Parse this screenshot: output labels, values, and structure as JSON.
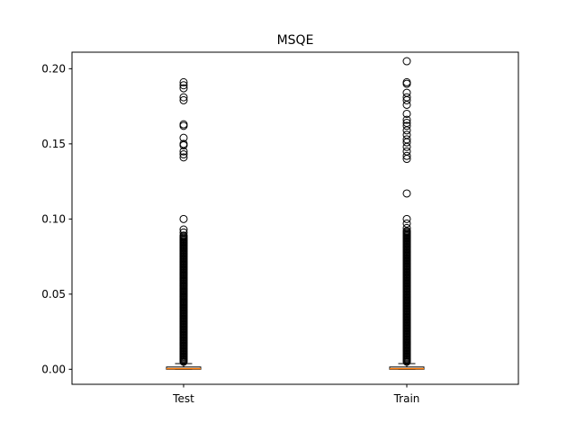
{
  "chart_data": {
    "type": "box",
    "title": "MSQE",
    "xlabel": "",
    "ylabel": "",
    "categories": [
      "Test",
      "Train"
    ],
    "ylim": [
      -0.01,
      0.211
    ],
    "yticks": [
      0.0,
      0.05,
      0.1,
      0.15,
      0.2
    ],
    "ytick_labels": [
      "0.00",
      "0.05",
      "0.10",
      "0.15",
      "0.20"
    ],
    "grid": false,
    "legend": "none",
    "boxes": [
      {
        "name": "Test",
        "whisker_low": 0.0,
        "q1": 0.0,
        "median": 0.0004,
        "q3": 0.0015,
        "whisker_high": 0.0038,
        "outliers_dense_range": [
          0.005,
          0.089
        ],
        "outliers": [
          0.091,
          0.093,
          0.1,
          0.141,
          0.143,
          0.145,
          0.149,
          0.15,
          0.154,
          0.162,
          0.163,
          0.179,
          0.181,
          0.187,
          0.189,
          0.191
        ]
      },
      {
        "name": "Train",
        "whisker_low": 0.0,
        "q1": 0.0,
        "median": 0.0004,
        "q3": 0.0015,
        "whisker_high": 0.0038,
        "outliers_dense_range": [
          0.005,
          0.092
        ],
        "outliers": [
          0.094,
          0.097,
          0.1,
          0.117,
          0.14,
          0.142,
          0.145,
          0.148,
          0.151,
          0.153,
          0.156,
          0.159,
          0.162,
          0.164,
          0.166,
          0.17,
          0.176,
          0.179,
          0.181,
          0.184,
          0.19,
          0.191,
          0.205
        ]
      }
    ],
    "colors": {
      "box": "#000000",
      "median": "#ff7f0e",
      "flier": "#000000"
    }
  }
}
